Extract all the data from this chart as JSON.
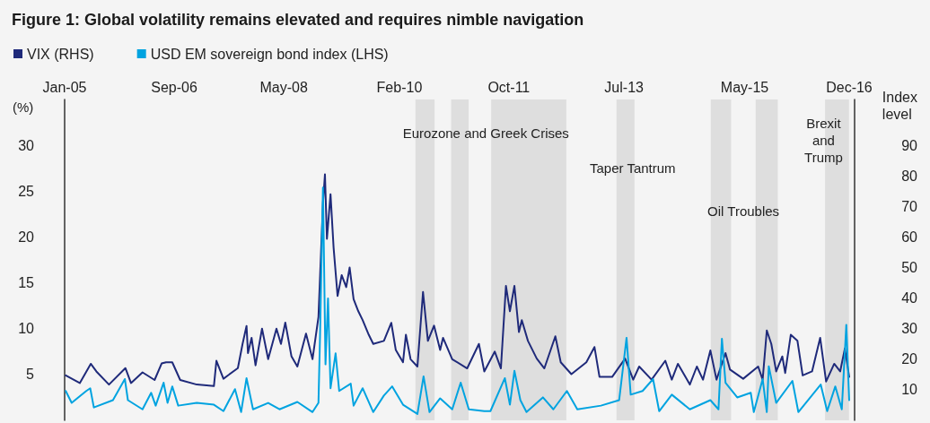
{
  "chart_data": {
    "type": "line",
    "title": "Figure 1: Global volatility remains elevated and requires nimble navigation",
    "ylabel": "(%)",
    "y2label": "Index level",
    "legend": "top left",
    "xlim": [
      "2005-01-01",
      "2016-12-31"
    ],
    "xticks": [
      {
        "value": "2005-01",
        "label": "Jan-05"
      },
      {
        "value": "2006-09",
        "label": "Sep-06"
      },
      {
        "value": "2008-05",
        "label": "May-08"
      },
      {
        "value": "2010-02",
        "label": "Feb-10"
      },
      {
        "value": "2011-10",
        "label": "Oct-11"
      },
      {
        "value": "2013-07",
        "label": "Jul-13"
      },
      {
        "value": "2015-05",
        "label": "May-15"
      },
      {
        "value": "2016-12",
        "label": "Dec-16"
      }
    ],
    "ylim": [
      0,
      35
    ],
    "yticks": [
      5,
      10,
      15,
      20,
      25,
      30
    ],
    "y2lim": [
      0,
      105
    ],
    "y2ticks": [
      10,
      20,
      30,
      40,
      50,
      60,
      70,
      80,
      90
    ],
    "series": [
      {
        "name": "VIX (RHS)",
        "color": "#1f2a7a",
        "axis": "y2",
        "x": [
          "2005-01-07",
          "2005-03-26",
          "2005-05-26",
          "2005-06-26",
          "2005-09-04",
          "2005-12-04",
          "2006-01-04",
          "2006-03-09",
          "2006-05-15",
          "2006-06-23",
          "2006-07-18",
          "2006-08-21",
          "2006-10-04",
          "2007-01-04",
          "2007-04-09",
          "2007-04-23",
          "2007-06-01",
          "2007-08-20",
          "2007-09-15",
          "2007-10-07",
          "2007-10-15",
          "2007-11-04",
          "2007-11-26",
          "2008-01-01",
          "2008-02-04",
          "2008-03-21",
          "2008-04-15",
          "2008-05-09",
          "2008-06-12",
          "2008-07-15",
          "2008-09-01",
          "2008-10-07",
          "2008-11-09",
          "2008-12-04",
          "2008-12-15",
          "2008-12-26",
          "2009-01-15",
          "2009-02-01",
          "2009-02-23",
          "2009-03-18",
          "2009-04-12",
          "2009-05-01",
          "2009-05-23",
          "2009-06-18",
          "2009-07-12",
          "2009-08-15",
          "2009-09-09",
          "2009-11-07",
          "2009-12-18",
          "2010-01-12",
          "2010-02-21",
          "2010-03-09",
          "2010-04-04",
          "2010-05-12",
          "2010-06-12",
          "2010-07-09",
          "2010-08-12",
          "2010-09-15",
          "2010-10-01",
          "2010-11-21",
          "2011-02-12",
          "2011-04-18",
          "2011-05-18",
          "2011-07-15",
          "2011-08-18",
          "2011-09-15",
          "2011-10-07",
          "2011-11-01",
          "2011-11-26",
          "2011-12-12",
          "2012-01-15",
          "2012-03-04",
          "2012-04-15",
          "2012-06-15",
          "2012-07-15",
          "2012-09-12",
          "2012-12-04",
          "2013-01-18",
          "2013-02-15",
          "2013-04-26",
          "2013-07-07",
          "2013-08-21",
          "2013-09-23",
          "2013-12-01",
          "2014-02-15",
          "2014-03-23",
          "2014-04-26",
          "2014-07-01",
          "2014-08-09",
          "2014-09-12",
          "2014-10-23",
          "2014-11-26",
          "2015-01-15",
          "2015-02-09",
          "2015-04-23",
          "2015-07-15",
          "2015-08-09",
          "2015-09-01",
          "2015-09-26",
          "2015-10-23",
          "2015-11-26",
          "2015-12-12",
          "2016-01-12",
          "2016-02-18",
          "2016-03-18",
          "2016-05-09",
          "2016-06-23",
          "2016-07-26",
          "2016-09-09",
          "2016-10-12",
          "2016-11-07",
          "2016-12-01"
        ],
        "values": [
          14.7,
          12.2,
          18.5,
          16.0,
          11.7,
          17.1,
          12.2,
          15.7,
          13.2,
          18.6,
          19,
          19,
          13.2,
          11.7,
          11.2,
          19.5,
          13.6,
          17.1,
          25,
          30.9,
          22,
          27,
          18,
          30,
          20,
          30,
          25,
          32,
          21,
          17.6,
          28.4,
          20,
          33.8,
          71,
          80.5,
          59.4,
          74,
          56.5,
          40.7,
          47.5,
          43.6,
          50,
          39.6,
          35.7,
          32.8,
          28,
          25,
          26,
          31.9,
          23,
          19,
          28,
          20,
          17.6,
          42,
          26,
          31,
          23,
          27,
          20,
          17,
          25,
          16,
          22.5,
          17,
          44,
          35.7,
          44,
          28.9,
          32.8,
          26,
          20.2,
          17,
          27.5,
          19,
          15.1,
          19,
          24,
          14.2,
          14.2,
          20.2,
          13.3,
          17.6,
          13.3,
          19.5,
          13.3,
          18.5,
          11.7,
          17.6,
          13.3,
          22.9,
          13.3,
          22,
          16.6,
          13.6,
          17.6,
          13.3,
          29.4,
          25,
          16,
          20.9,
          15.5,
          28,
          26,
          14.7,
          16,
          27,
          12.7,
          18.5,
          16,
          23.5,
          14.2
        ]
      },
      {
        "name": "USD EM sovereign bond index (LHS)",
        "color": "#00a3e0",
        "x": [
          "2005-01-07",
          "2005-02-09",
          "2005-05-01",
          "2005-05-23",
          "2005-06-12",
          "2005-09-26",
          "2005-12-01",
          "2005-12-18",
          "2006-03-09",
          "2006-04-26",
          "2006-05-21",
          "2006-07-04",
          "2006-07-26",
          "2006-08-21",
          "2006-09-23",
          "2007-01-04",
          "2007-04-09",
          "2007-06-01",
          "2007-08-04",
          "2007-09-07",
          "2007-10-07",
          "2007-11-12",
          "2008-02-04",
          "2008-04-07",
          "2008-07-15",
          "2008-10-07",
          "2008-11-09",
          "2008-11-18",
          "2008-12-04",
          "2008-12-18",
          "2009-01-01",
          "2009-01-15",
          "2009-02-12",
          "2009-03-04",
          "2009-05-07",
          "2009-05-23",
          "2009-07-12",
          "2009-09-09",
          "2009-11-07",
          "2009-12-23",
          "2010-02-21",
          "2010-05-12",
          "2010-06-15",
          "2010-07-18",
          "2010-09-15",
          "2010-11-21",
          "2011-01-07",
          "2011-02-21",
          "2011-05-18",
          "2011-06-21",
          "2011-09-09",
          "2011-10-07",
          "2011-11-01",
          "2011-12-04",
          "2012-01-07",
          "2012-04-07",
          "2012-06-04",
          "2012-08-18",
          "2012-10-15",
          "2013-02-23",
          "2013-06-04",
          "2013-07-15",
          "2013-08-07",
          "2013-10-12",
          "2013-12-09",
          "2014-01-12",
          "2014-03-23",
          "2014-07-01",
          "2014-10-23",
          "2014-12-07",
          "2014-12-26",
          "2015-01-15",
          "2015-03-21",
          "2015-06-04",
          "2015-06-21",
          "2015-08-09",
          "2015-09-01",
          "2015-09-12",
          "2015-10-23",
          "2016-01-21",
          "2016-02-23",
          "2016-06-26",
          "2016-08-01",
          "2016-09-15",
          "2016-10-21",
          "2016-11-15",
          "2016-12-01"
        ],
        "values": [
          3.2,
          1.9,
          3.2,
          3.5,
          1.4,
          2.2,
          4.5,
          2.2,
          1.2,
          3.0,
          1.6,
          4.1,
          1.9,
          3.7,
          1.6,
          1.9,
          1.7,
          1.0,
          3.4,
          0.9,
          4.6,
          1.2,
          1.9,
          1.2,
          2.0,
          0.9,
          1.9,
          9.4,
          25.4,
          6.1,
          13.3,
          3.5,
          7.3,
          3.2,
          4.0,
          1.6,
          3.5,
          0.9,
          2.7,
          3.7,
          1.7,
          0.7,
          4.8,
          0.9,
          2.4,
          1.2,
          4.1,
          1.2,
          1.0,
          1.0,
          4.6,
          1.7,
          5.4,
          2.2,
          0.9,
          2.5,
          1.2,
          3.2,
          1.2,
          1.6,
          2.2,
          9.0,
          2.8,
          3.2,
          4.5,
          1.0,
          2.8,
          1.2,
          2.2,
          1.2,
          8.9,
          4.1,
          2.5,
          3.0,
          0.9,
          4.5,
          0.9,
          5.9,
          1.9,
          4.3,
          0.9,
          3.9,
          1.0,
          3.7,
          1.2,
          10.4,
          2.2
        ]
      }
    ],
    "bands": [
      {
        "axis": "x",
        "from": "2010-05-01",
        "to": "2010-08-15",
        "color": "#dedede"
      },
      {
        "axis": "x",
        "from": "2010-11-15",
        "to": "2011-02-20",
        "color": "#dedede",
        "label": "Eurozone and Greek Crises"
      },
      {
        "axis": "x",
        "from": "2011-06-25",
        "to": "2012-08-15",
        "color": "#dedede"
      },
      {
        "axis": "x",
        "from": "2013-05-20",
        "to": "2013-08-28",
        "color": "#dedede",
        "label": "Taper Tantrum"
      },
      {
        "axis": "x",
        "from": "2014-10-25",
        "to": "2015-02-15",
        "color": "#dedede",
        "label": "Oil Troubles"
      },
      {
        "axis": "x",
        "from": "2015-07-01",
        "to": "2015-11-01",
        "color": "#dedede"
      },
      {
        "axis": "x",
        "from": "2016-07-20",
        "to": "2016-11-30",
        "color": "#dedede",
        "label": "Brexit\nand\nTrump"
      }
    ]
  }
}
